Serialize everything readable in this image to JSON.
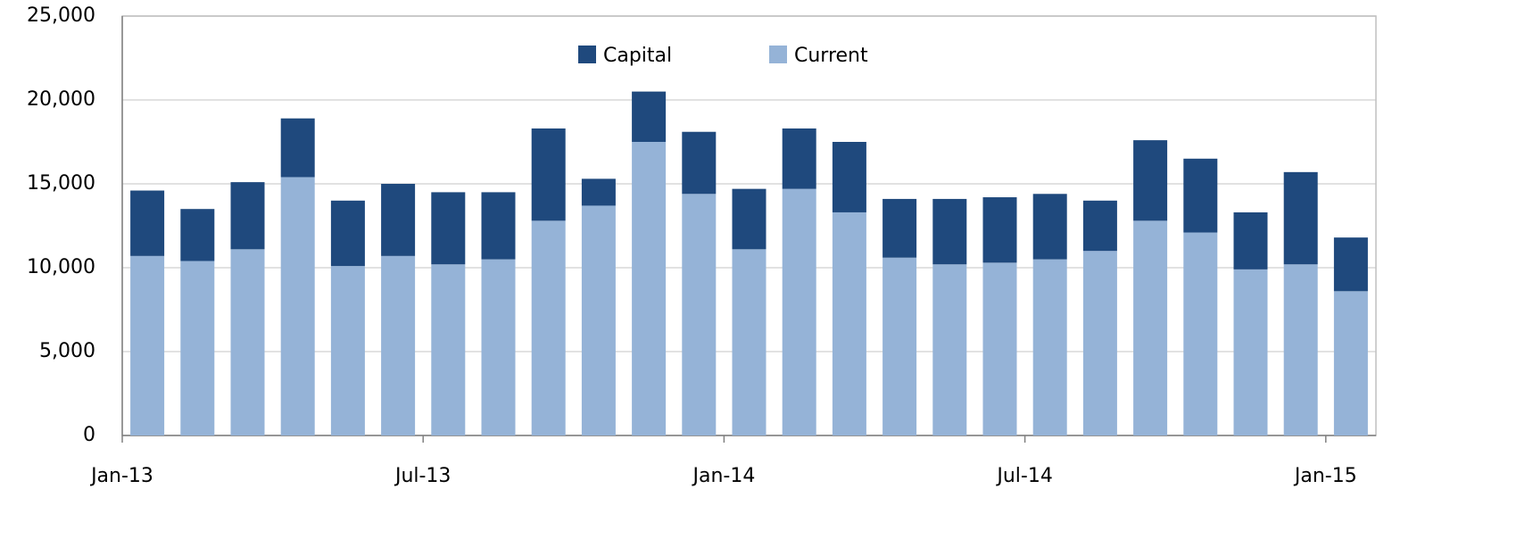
{
  "chart_data": {
    "type": "stacked_bar",
    "categories": [
      "Jan-13",
      null,
      null,
      null,
      null,
      null,
      "Jul-13",
      null,
      null,
      null,
      null,
      null,
      "Jan-14",
      null,
      null,
      null,
      null,
      null,
      "Jul-14",
      null,
      null,
      null,
      null,
      null,
      "Jan-15"
    ],
    "series": [
      {
        "name": "Capital",
        "color": "#1f497d",
        "values": [
          3900,
          3100,
          4000,
          3500,
          3900,
          4300,
          4300,
          4000,
          5500,
          1600,
          3000,
          3700,
          3600,
          3600,
          4200,
          3500,
          3900,
          3900,
          3900,
          3000,
          4800,
          4400,
          3400,
          5500,
          3200
        ]
      },
      {
        "name": "Current",
        "color": "#95b3d7",
        "values": [
          10700,
          10400,
          11100,
          15400,
          10100,
          10700,
          10200,
          10500,
          12800,
          13700,
          17500,
          14400,
          11100,
          14700,
          13300,
          10600,
          10200,
          10300,
          10500,
          11000,
          12800,
          12100,
          9900,
          10200,
          8600
        ]
      }
    ],
    "ylim": [
      0,
      25000
    ],
    "yticks": [
      0,
      {
        "value": 5000,
        "label": "5,000"
      },
      {
        "value": 10000,
        "label": "10,000"
      },
      {
        "value": 15000,
        "label": "15,000"
      },
      {
        "value": 20000,
        "label": "20,000"
      },
      {
        "value": 25000,
        "label": "25,000"
      }
    ],
    "grid": true,
    "legend": "top"
  }
}
